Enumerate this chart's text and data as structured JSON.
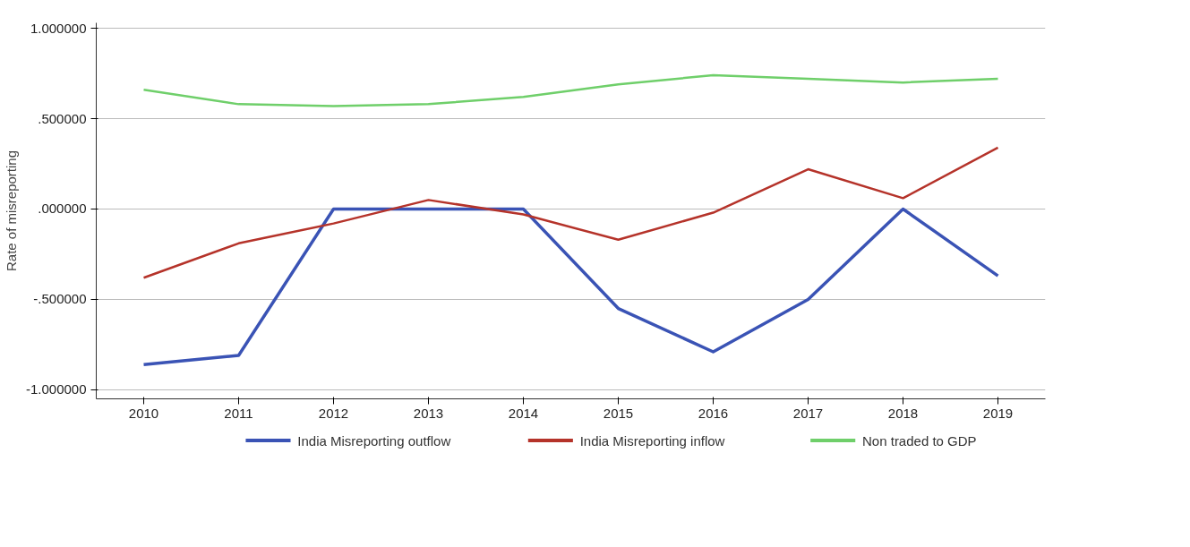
{
  "chart_data": {
    "type": "line",
    "ylabel": "Rate of misreporting",
    "categories": [
      "2010",
      "2011",
      "2012",
      "2013",
      "2014",
      "2015",
      "2016",
      "2017",
      "2018",
      "2019"
    ],
    "series": [
      {
        "name": "India Misreporting outflow",
        "color": "#3a53b5",
        "values": [
          -0.86,
          -0.81,
          0,
          0,
          0,
          -0.55,
          -0.79,
          -0.5,
          0,
          -0.37
        ]
      },
      {
        "name": "India Misreporting inflow",
        "color": "#b5332a",
        "values": [
          -0.38,
          -0.19,
          -0.08,
          0.05,
          -0.03,
          -0.17,
          -0.02,
          0.22,
          0.06,
          0.34
        ]
      },
      {
        "name": "Non traded to GDP",
        "color": "#6fcf6a",
        "values": [
          0.66,
          0.58,
          0.57,
          0.58,
          0.62,
          0.69,
          0.74,
          0.72,
          0.7,
          0.72
        ]
      }
    ],
    "ylim": [
      -1.05,
      1.03
    ],
    "yticks": [
      {
        "value": -1,
        "label": "-1.000000"
      },
      {
        "value": -0.5,
        "label": "-.500000"
      },
      {
        "value": 0,
        "label": ".000000"
      },
      {
        "value": 0.5,
        "label": ".500000"
      },
      {
        "value": 1,
        "label": "1.000000"
      }
    ],
    "grid": "y",
    "legend": "bottom",
    "marker": "none",
    "line_style": "solid"
  }
}
